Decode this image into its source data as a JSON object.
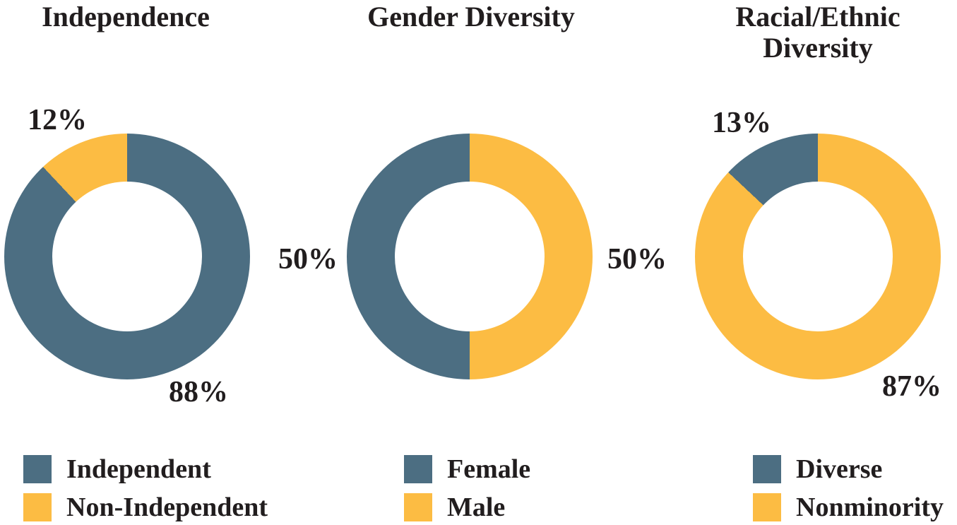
{
  "page": {
    "background_color": "#ffffff",
    "text_color": "#211d1e"
  },
  "palette": {
    "slate": "#4c6e82",
    "gold": "#fcbc43"
  },
  "chart_data": [
    {
      "type": "donut",
      "title": "Independence",
      "start_angle_deg": 0,
      "direction": "clockwise",
      "series": [
        {
          "label": "Independent",
          "value": 88,
          "color": "#4c6e82"
        },
        {
          "label": "Non-Independent",
          "value": 12,
          "color": "#fcbc43"
        }
      ],
      "labels": [
        {
          "text": "12%",
          "slice": "Non-Independent",
          "position": "top-left"
        },
        {
          "text": "88%",
          "slice": "Independent",
          "position": "bottom-right"
        }
      ],
      "legend": [
        {
          "label": "Independent",
          "color": "#4c6e82"
        },
        {
          "label": "Non-Independent",
          "color": "#fcbc43"
        }
      ],
      "legend_position": "bottom-left"
    },
    {
      "type": "donut",
      "title": "Gender Diversity",
      "start_angle_deg": 0,
      "direction": "clockwise",
      "series": [
        {
          "label": "Male",
          "value": 50,
          "color": "#fcbc43"
        },
        {
          "label": "Female",
          "value": 50,
          "color": "#4c6e82"
        }
      ],
      "labels": [
        {
          "text": "50%",
          "slice": "Female",
          "position": "left"
        },
        {
          "text": "50%",
          "slice": "Male",
          "position": "right"
        }
      ],
      "legend": [
        {
          "label": "Female",
          "color": "#4c6e82"
        },
        {
          "label": "Male",
          "color": "#fcbc43"
        }
      ],
      "legend_position": "bottom-left"
    },
    {
      "type": "donut",
      "title": "Racial/Ethnic Diversity",
      "start_angle_deg": 0,
      "direction": "clockwise",
      "series": [
        {
          "label": "Nonminority",
          "value": 87,
          "color": "#fcbc43"
        },
        {
          "label": "Diverse",
          "value": 13,
          "color": "#4c6e82"
        }
      ],
      "labels": [
        {
          "text": "13%",
          "slice": "Diverse",
          "position": "top-left"
        },
        {
          "text": "87%",
          "slice": "Nonminority",
          "position": "bottom-right"
        }
      ],
      "legend": [
        {
          "label": "Diverse",
          "color": "#4c6e82"
        },
        {
          "label": "Nonminority",
          "color": "#fcbc43"
        }
      ],
      "legend_position": "bottom-left"
    }
  ]
}
